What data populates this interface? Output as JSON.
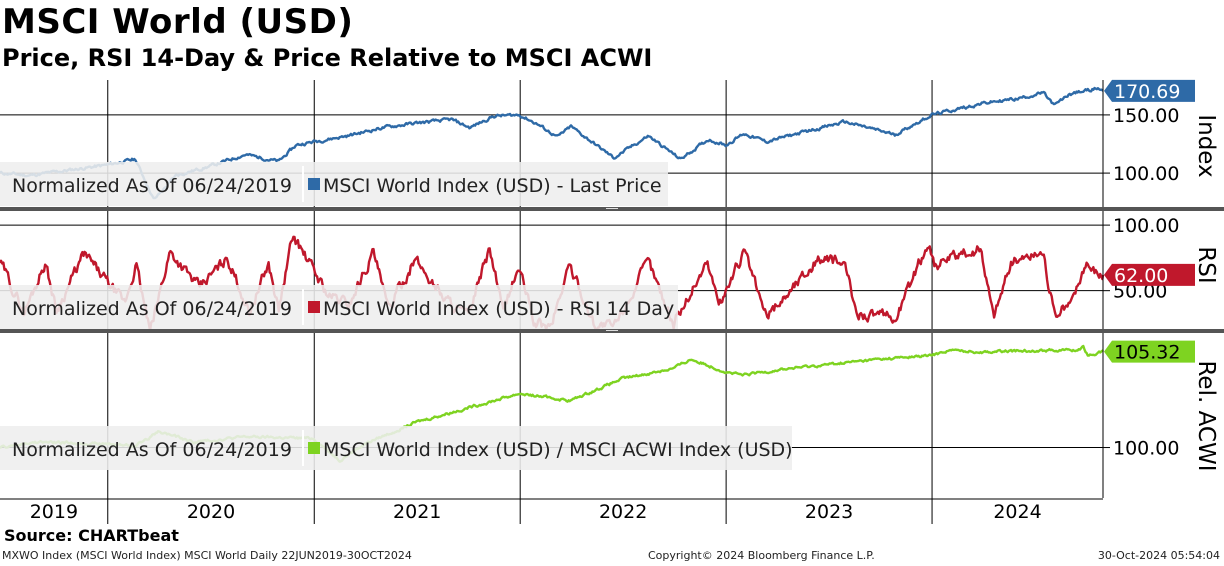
{
  "title": "MSCI World (USD)",
  "subtitle": "Price, RSI 14-Day & Price Relative to MSCI ACWI",
  "source": "Source: CHARTbeat",
  "footer": {
    "left": "MXWO Index (MSCI World Index) MSCI World  Daily 22JUN2019-30OCT2024",
    "center": "Copyright© 2024 Bloomberg Finance L.P.",
    "right": "30-Oct-2024 05:54:04"
  },
  "colors": {
    "price": "#2e6aa7",
    "rsi": "#c0182c",
    "relative": "#7ed321",
    "legend_bg": "#eeeeee",
    "panel_divider": "#555555"
  },
  "chart_data": {
    "type": "line",
    "x_axis": {
      "start": "2019-06-24",
      "end": "2024-10-30",
      "year_labels": [
        "2019",
        "2020",
        "2021",
        "2022",
        "2023",
        "2024"
      ]
    },
    "panels": [
      {
        "id": "price",
        "axis_label": "Index",
        "ylim": [
          70,
          180
        ],
        "ticks": [
          "150.00",
          "100.00"
        ],
        "tick_values": [
          150,
          100
        ],
        "last_value": "170.69",
        "legend": {
          "note": "Normalized As Of 06/24/2019",
          "series": "MSCI World Index (USD) - Last Price"
        },
        "points": [
          [
            "2019-06-24",
            100
          ],
          [
            "2019-08-15",
            98
          ],
          [
            "2019-10-01",
            101
          ],
          [
            "2019-12-31",
            107
          ],
          [
            "2020-02-19",
            112
          ],
          [
            "2020-03-23",
            77
          ],
          [
            "2020-05-01",
            98
          ],
          [
            "2020-07-01",
            106
          ],
          [
            "2020-09-01",
            116
          ],
          [
            "2020-10-30",
            110
          ],
          [
            "2020-11-30",
            124
          ],
          [
            "2020-12-31",
            127
          ],
          [
            "2021-03-01",
            132
          ],
          [
            "2021-05-01",
            139
          ],
          [
            "2021-07-01",
            143
          ],
          [
            "2021-09-01",
            146
          ],
          [
            "2021-10-04",
            139
          ],
          [
            "2021-11-15",
            149
          ],
          [
            "2021-12-31",
            150
          ],
          [
            "2022-02-01",
            142
          ],
          [
            "2022-03-08",
            131
          ],
          [
            "2022-04-01",
            140
          ],
          [
            "2022-06-16",
            113
          ],
          [
            "2022-08-16",
            132
          ],
          [
            "2022-10-12",
            112
          ],
          [
            "2022-12-01",
            129
          ],
          [
            "2023-01-01",
            124
          ],
          [
            "2023-02-01",
            134
          ],
          [
            "2023-03-13",
            127
          ],
          [
            "2023-06-01",
            137
          ],
          [
            "2023-07-31",
            144
          ],
          [
            "2023-10-27",
            133
          ],
          [
            "2023-12-31",
            150
          ],
          [
            "2024-03-31",
            160
          ],
          [
            "2024-05-31",
            164
          ],
          [
            "2024-07-16",
            169
          ],
          [
            "2024-08-05",
            158
          ],
          [
            "2024-09-01",
            168
          ],
          [
            "2024-10-21",
            173
          ],
          [
            "2024-10-30",
            170.69
          ]
        ]
      },
      {
        "id": "rsi",
        "axis_label": "RSI",
        "ylim": [
          20,
          110
        ],
        "ticks": [
          "100.00",
          "50.00"
        ],
        "tick_values": [
          100,
          50
        ],
        "last_value": "62.00",
        "legend": {
          "note": "Normalized As Of 06/24/2019",
          "series": "MSCI World Index (USD) - RSI 14 Day"
        },
        "points": [
          [
            "2019-06-24",
            72
          ],
          [
            "2019-08-06",
            33
          ],
          [
            "2019-09-12",
            72
          ],
          [
            "2019-10-02",
            35
          ],
          [
            "2019-11-20",
            78
          ],
          [
            "2020-01-31",
            40
          ],
          [
            "2020-02-20",
            70
          ],
          [
            "2020-03-16",
            18
          ],
          [
            "2020-04-20",
            80
          ],
          [
            "2020-06-11",
            52
          ],
          [
            "2020-07-31",
            75
          ],
          [
            "2020-09-08",
            34
          ],
          [
            "2020-10-12",
            70
          ],
          [
            "2020-10-30",
            35
          ],
          [
            "2020-11-24",
            92
          ],
          [
            "2021-01-27",
            46
          ],
          [
            "2021-03-04",
            40
          ],
          [
            "2021-04-16",
            80
          ],
          [
            "2021-05-12",
            35
          ],
          [
            "2021-06-28",
            74
          ],
          [
            "2021-08-19",
            45
          ],
          [
            "2021-09-30",
            30
          ],
          [
            "2021-11-08",
            82
          ],
          [
            "2021-12-01",
            34
          ],
          [
            "2021-12-29",
            68
          ],
          [
            "2022-01-27",
            25
          ],
          [
            "2022-02-24",
            22
          ],
          [
            "2022-03-29",
            70
          ],
          [
            "2022-05-12",
            25
          ],
          [
            "2022-06-16",
            22
          ],
          [
            "2022-08-16",
            72
          ],
          [
            "2022-09-30",
            25
          ],
          [
            "2022-11-28",
            72
          ],
          [
            "2022-12-20",
            40
          ],
          [
            "2023-02-02",
            80
          ],
          [
            "2023-03-13",
            30
          ],
          [
            "2023-06-14",
            75
          ],
          [
            "2023-07-31",
            70
          ],
          [
            "2023-08-18",
            34
          ],
          [
            "2023-10-27",
            28
          ],
          [
            "2023-12-27",
            88
          ],
          [
            "2024-01-05",
            70
          ],
          [
            "2024-03-28",
            82
          ],
          [
            "2024-04-19",
            30
          ],
          [
            "2024-05-20",
            72
          ],
          [
            "2024-07-16",
            80
          ],
          [
            "2024-08-05",
            30
          ],
          [
            "2024-09-06",
            42
          ],
          [
            "2024-09-27",
            70
          ],
          [
            "2024-10-30",
            62
          ]
        ]
      },
      {
        "id": "relative",
        "axis_label": "Rel. ACWI",
        "ylim": [
          97.2,
          106.3
        ],
        "ticks": [
          "100.00"
        ],
        "tick_values": [
          100
        ],
        "last_value": "105.32",
        "legend": {
          "note": "Normalized As Of 06/24/2019",
          "series": "MSCI World Index (USD) / MSCI ACWI Index (USD)"
        },
        "points": [
          [
            "2019-06-24",
            100
          ],
          [
            "2019-09-01",
            100.3
          ],
          [
            "2019-12-31",
            100.2
          ],
          [
            "2020-02-19",
            100.1
          ],
          [
            "2020-04-01",
            100.9
          ],
          [
            "2020-06-01",
            100.3
          ],
          [
            "2020-09-01",
            100.6
          ],
          [
            "2020-12-31",
            100.5
          ],
          [
            "2021-02-15",
            99.3
          ],
          [
            "2021-03-31",
            100.2
          ],
          [
            "2021-06-30",
            101.4
          ],
          [
            "2021-09-30",
            102.2
          ],
          [
            "2021-12-31",
            103.0
          ],
          [
            "2022-03-31",
            102.6
          ],
          [
            "2022-06-30",
            103.8
          ],
          [
            "2022-09-30",
            104.4
          ],
          [
            "2022-10-31",
            104.9
          ],
          [
            "2022-12-31",
            104.2
          ],
          [
            "2023-01-31",
            104.0
          ],
          [
            "2023-03-31",
            104.3
          ],
          [
            "2023-06-30",
            104.6
          ],
          [
            "2023-09-30",
            104.9
          ],
          [
            "2023-12-31",
            105.1
          ],
          [
            "2024-01-31",
            105.4
          ],
          [
            "2024-03-31",
            105.3
          ],
          [
            "2024-06-30",
            105.4
          ],
          [
            "2024-09-15",
            105.4
          ],
          [
            "2024-09-25",
            105.6
          ],
          [
            "2024-10-04",
            105.1
          ],
          [
            "2024-10-30",
            105.32
          ]
        ]
      }
    ]
  }
}
